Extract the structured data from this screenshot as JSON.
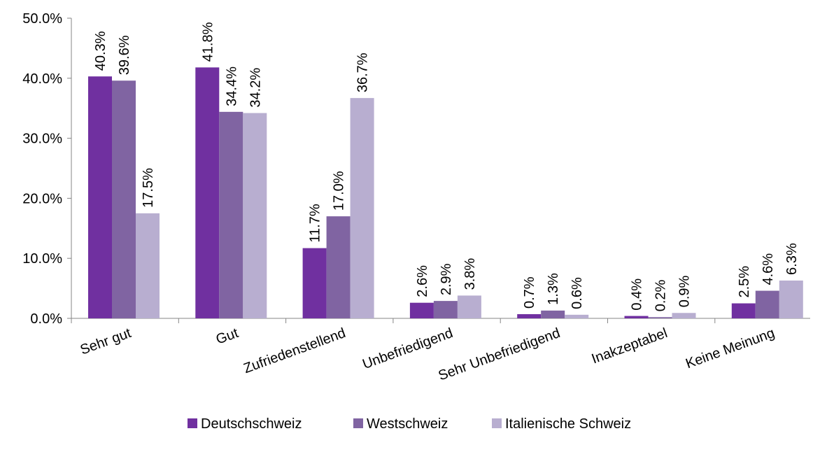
{
  "chart_data": {
    "type": "bar",
    "categories": [
      "Sehr gut",
      "Gut",
      "Zufriedenstellend",
      "Unbefriedigend",
      "Sehr Unbefriedigend",
      "Inakzeptabel",
      "Keine Meinung"
    ],
    "series": [
      {
        "name": "Deutschschweiz",
        "color": "#7030a0",
        "values": [
          40.3,
          41.8,
          11.7,
          2.6,
          0.7,
          0.4,
          2.5
        ],
        "labels": [
          "40.3%",
          "41.8%",
          "11.7%",
          "2.6%",
          "0.7%",
          "0.4%",
          "2.5%"
        ]
      },
      {
        "name": "Westschweiz",
        "color": "#8064a2",
        "values": [
          39.6,
          34.4,
          17.0,
          2.9,
          1.3,
          0.2,
          4.6
        ],
        "labels": [
          "39.6%",
          "34.4%",
          "17.0%",
          "2.9%",
          "1.3%",
          "0.2%",
          "4.6%"
        ]
      },
      {
        "name": "Italienische Schweiz",
        "color": "#b8aed0",
        "values": [
          17.5,
          34.2,
          36.7,
          3.8,
          0.6,
          0.9,
          6.3
        ],
        "labels": [
          "17.5%",
          "34.2%",
          "36.7%",
          "3.8%",
          "0.6%",
          "0.9%",
          "6.3%"
        ]
      }
    ],
    "ylim": [
      0,
      50
    ],
    "yticks": [
      0,
      10,
      20,
      30,
      40,
      50
    ],
    "ytick_labels": [
      "0.0%",
      "10.0%",
      "20.0%",
      "30.0%",
      "40.0%",
      "50.0%"
    ],
    "title": "",
    "xlabel": "",
    "ylabel": "",
    "grid": false,
    "legend_position": "bottom"
  }
}
